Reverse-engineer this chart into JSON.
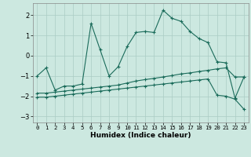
{
  "xlabel": "Humidex (Indice chaleur)",
  "ylabel": "",
  "bg_color": "#cce8e0",
  "grid_color": "#aaccC4",
  "line_color": "#1a6b5a",
  "xlim": [
    -0.5,
    23.5
  ],
  "ylim": [
    -3.3,
    2.6
  ],
  "yticks": [
    -3,
    -2,
    -1,
    0,
    1,
    2
  ],
  "xticks": [
    0,
    1,
    2,
    3,
    4,
    5,
    6,
    7,
    8,
    9,
    10,
    11,
    12,
    13,
    14,
    15,
    16,
    17,
    18,
    19,
    20,
    21,
    22,
    23
  ],
  "series1_x": [
    0,
    1,
    2,
    3,
    4,
    5,
    6,
    7,
    8,
    9,
    10,
    11,
    12,
    13,
    14,
    15,
    16,
    17,
    18,
    19,
    20,
    21,
    22,
    23
  ],
  "series1_y": [
    -1.0,
    -0.6,
    -1.7,
    -1.5,
    -1.5,
    -1.4,
    1.6,
    0.3,
    -1.0,
    -0.55,
    0.45,
    1.15,
    1.2,
    1.15,
    2.25,
    1.85,
    1.7,
    1.2,
    0.85,
    0.65,
    -0.3,
    -0.35,
    -2.1,
    -1.05
  ],
  "series2_x": [
    0,
    1,
    2,
    3,
    4,
    5,
    6,
    7,
    8,
    9,
    10,
    11,
    12,
    13,
    14,
    15,
    16,
    17,
    18,
    19,
    20,
    21,
    22,
    23
  ],
  "series2_y": [
    -1.85,
    -1.85,
    -1.8,
    -1.75,
    -1.7,
    -1.65,
    -1.6,
    -1.55,
    -1.5,
    -1.45,
    -1.35,
    -1.25,
    -1.18,
    -1.12,
    -1.05,
    -0.98,
    -0.9,
    -0.85,
    -0.78,
    -0.72,
    -0.65,
    -0.6,
    -1.05,
    -1.05
  ],
  "series3_x": [
    0,
    1,
    2,
    3,
    4,
    5,
    6,
    7,
    8,
    9,
    10,
    11,
    12,
    13,
    14,
    15,
    16,
    17,
    18,
    19,
    20,
    21,
    22,
    23
  ],
  "series3_y": [
    -2.05,
    -2.05,
    -2.0,
    -1.95,
    -1.9,
    -1.85,
    -1.8,
    -1.75,
    -1.7,
    -1.65,
    -1.6,
    -1.55,
    -1.5,
    -1.45,
    -1.4,
    -1.35,
    -1.3,
    -1.25,
    -1.2,
    -1.15,
    -1.95,
    -2.0,
    -2.15,
    -2.65
  ]
}
